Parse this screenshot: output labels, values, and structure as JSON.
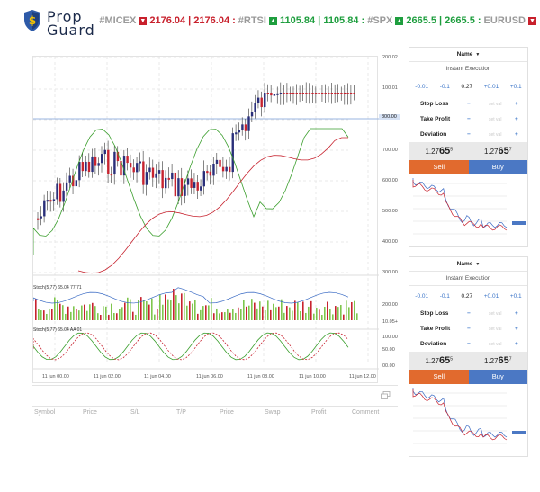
{
  "brand": {
    "line1": "Prop",
    "line2": "Guard"
  },
  "ticker": [
    {
      "sym": "#MICEX",
      "dir": "down",
      "text": "2176.04 | 2176.04 :"
    },
    {
      "sym": "#RTSI",
      "dir": "up",
      "text": "1105.84 | 1105.84 :"
    },
    {
      "sym": "#SPX",
      "dir": "up",
      "text": "2665.5 | 2665.5 :"
    },
    {
      "sym": "EURUSD",
      "dir": "down",
      "text": ""
    }
  ],
  "ticker_colors": {
    "up": "#1e9e3e",
    "down": "#c8202c"
  },
  "chart": {
    "price_labels": [
      "200.02",
      "100.01",
      "800.00",
      "700.00",
      "600.00",
      "500.00",
      "400.00",
      "300.00"
    ],
    "current_price": "800.00",
    "stoch1_label": "Stoch(5,77) 65.04 77.71",
    "stoch1_ticks": [
      "200.00",
      "10.05+"
    ],
    "stoch2_label": "Stoch(5,77) 65.04 AA 01",
    "stoch2_ticks": [
      "100.00",
      "50.00",
      "00.00"
    ],
    "time_labels": [
      "11 jun 00.00",
      "11 jun 02.00",
      "11 jun 04.00",
      "11 jun 06.00",
      "11 jun 08.00",
      "11 jun 10.00",
      "11 jun 12.00"
    ]
  },
  "columns": [
    "Symbol",
    "Price",
    "S/L",
    "T/P",
    "Price",
    "Swap",
    "Profit",
    "Comment"
  ],
  "panels": [
    {
      "name": "Name",
      "mode": "Instant Execution",
      "steps": [
        "-0.01",
        "-0.1",
        "0.27",
        "+0.01",
        "+0.1"
      ],
      "rows": [
        {
          "label": "Stop Loss",
          "ph": "set val"
        },
        {
          "label": "Take Profit",
          "ph": "set val"
        },
        {
          "label": "Deviation",
          "ph": "set val"
        }
      ],
      "sell_price": {
        "pre": "1.27",
        "big": "65",
        "sup": "5"
      },
      "buy_price": {
        "pre": "1.27",
        "big": "65",
        "sup": "7"
      },
      "sell": "Sell",
      "buy": "Buy"
    },
    {
      "name": "Name",
      "mode": "Instant Execution",
      "steps": [
        "-0.01",
        "-0.1",
        "0.27",
        "+0.01",
        "+0.1"
      ],
      "rows": [
        {
          "label": "Stop Loss",
          "ph": "set val"
        },
        {
          "label": "Take Profit",
          "ph": "set val"
        },
        {
          "label": "Deviation",
          "ph": "set val"
        }
      ],
      "sell_price": {
        "pre": "1.27",
        "big": "65",
        "sup": "5"
      },
      "buy_price": {
        "pre": "1.27",
        "big": "65",
        "sup": "7"
      },
      "sell": "Sell",
      "buy": "Buy"
    }
  ]
}
